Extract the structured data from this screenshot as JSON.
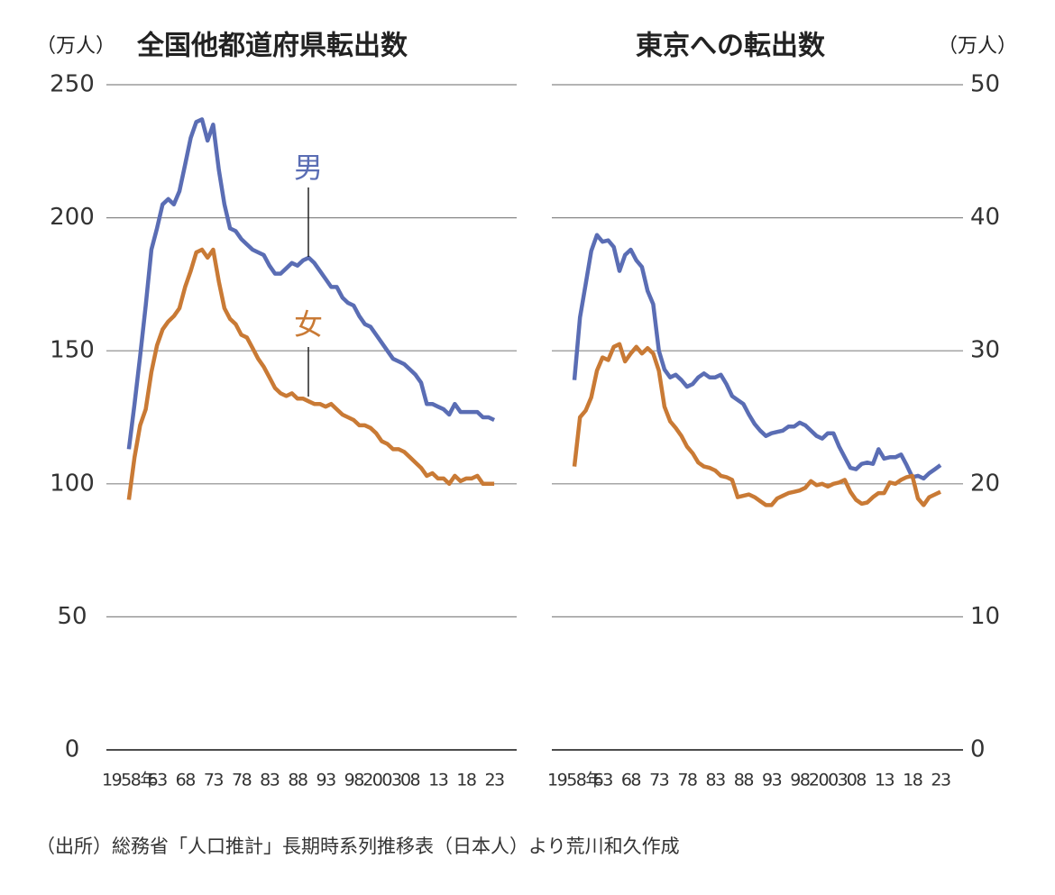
{
  "chart_data": [
    {
      "type": "line",
      "title": "全国他都道府県転出数",
      "y_label": "（万人）",
      "y_axis_side": "left",
      "ylim": [
        0,
        250
      ],
      "yticks": [
        0,
        50,
        100,
        150,
        200,
        250
      ],
      "xlim": [
        1954,
        2027
      ],
      "xticks": [
        {
          "value": 1958,
          "label": "1958年"
        },
        63,
        68,
        73,
        78,
        83,
        88,
        93,
        98,
        2003,
        {
          "value": 2008,
          "label": "08"
        },
        13,
        18,
        23
      ],
      "x": [
        1958,
        1959,
        1960,
        1961,
        1962,
        1963,
        1964,
        1965,
        1966,
        1967,
        1968,
        1969,
        1970,
        1971,
        1972,
        1973,
        1974,
        1975,
        1976,
        1977,
        1978,
        1979,
        1980,
        1981,
        1982,
        1983,
        1984,
        1985,
        1986,
        1987,
        1988,
        1989,
        1990,
        1991,
        1992,
        1993,
        1994,
        1995,
        1996,
        1997,
        1998,
        1999,
        2000,
        2001,
        2002,
        2003,
        2004,
        2005,
        2006,
        2007,
        2008,
        2009,
        2010,
        2011,
        2012,
        2013,
        2014,
        2015,
        2016,
        2017,
        2018,
        2019,
        2020,
        2021,
        2022,
        2023
      ],
      "grid": true,
      "series": [
        {
          "name": "男",
          "color": "#5a6db4",
          "values": [
            113,
            130,
            148,
            167,
            188,
            196,
            205,
            207,
            205,
            210,
            220,
            230,
            236,
            237,
            229,
            235,
            218,
            205,
            196,
            195,
            192,
            190,
            188,
            187,
            186,
            182,
            179,
            179,
            181,
            183,
            182,
            184,
            185,
            183,
            180,
            177,
            174,
            174,
            170,
            168,
            167,
            163,
            160,
            159,
            156,
            153,
            150,
            147,
            146,
            145,
            143,
            141,
            138,
            130,
            130,
            129,
            128,
            126,
            130,
            127,
            127,
            127,
            127,
            125,
            125,
            124
          ]
        },
        {
          "name": "女",
          "color": "#c97a35",
          "values": [
            94,
            110,
            122,
            128,
            142,
            152,
            158,
            161,
            163,
            166,
            174,
            180,
            187,
            188,
            185,
            188,
            176,
            166,
            162,
            160,
            156,
            155,
            151,
            147,
            144,
            140,
            136,
            134,
            133,
            134,
            132,
            132,
            131,
            130,
            130,
            129,
            130,
            128,
            126,
            125,
            124,
            122,
            122,
            121,
            119,
            116,
            115,
            113,
            113,
            112,
            110,
            108,
            106,
            103,
            104,
            102,
            102,
            100,
            103,
            101,
            102,
            102,
            103,
            100,
            100,
            100
          ]
        }
      ]
    },
    {
      "type": "line",
      "title": "東京への転出数",
      "y_label": "（万人）",
      "y_axis_side": "right",
      "ylim": [
        0,
        50
      ],
      "yticks": [
        0,
        10,
        20,
        30,
        40,
        50
      ],
      "xlim": [
        1954,
        2027
      ],
      "xticks": [
        {
          "value": 1958,
          "label": "1958年"
        },
        63,
        68,
        73,
        78,
        83,
        88,
        93,
        98,
        2003,
        {
          "value": 2008,
          "label": "08"
        },
        13,
        18,
        23
      ],
      "x": [
        1958,
        1959,
        1960,
        1961,
        1962,
        1963,
        1964,
        1965,
        1966,
        1967,
        1968,
        1969,
        1970,
        1971,
        1972,
        1973,
        1974,
        1975,
        1976,
        1977,
        1978,
        1979,
        1980,
        1981,
        1982,
        1983,
        1984,
        1985,
        1986,
        1987,
        1988,
        1989,
        1990,
        1991,
        1992,
        1993,
        1994,
        1995,
        1996,
        1997,
        1998,
        1999,
        2000,
        2001,
        2002,
        2003,
        2004,
        2005,
        2006,
        2007,
        2008,
        2009,
        2010,
        2011,
        2012,
        2013,
        2014,
        2015,
        2016,
        2017,
        2018,
        2019,
        2020,
        2021,
        2022,
        2023
      ],
      "grid": true,
      "series": [
        {
          "color": "#5a6db4",
          "values": [
            27.8,
            32.5,
            35,
            37.5,
            38.7,
            38.2,
            38.3,
            37.8,
            36,
            37.2,
            37.6,
            36.8,
            36.3,
            34.5,
            33.5,
            30,
            28.6,
            28,
            28.2,
            27.8,
            27.3,
            27.5,
            28,
            28.3,
            28,
            28,
            28.2,
            27.5,
            26.6,
            26.3,
            26,
            25.2,
            24.5,
            24,
            23.6,
            23.8,
            23.9,
            24,
            24.3,
            24.3,
            24.6,
            24.4,
            24,
            23.6,
            23.4,
            23.8,
            23.8,
            22.8,
            22,
            21.2,
            21.1,
            21.5,
            21.6,
            21.5,
            22.6,
            21.9,
            22,
            22,
            22.2,
            21.4,
            20.5,
            20.6,
            20.4,
            20.8,
            21.1,
            21.4
          ]
        },
        {
          "color": "#c97a35",
          "values": [
            21.3,
            25,
            25.5,
            26.5,
            28.5,
            29.5,
            29.3,
            30.3,
            30.5,
            29.2,
            29.8,
            30.3,
            29.8,
            30.2,
            29.8,
            28.5,
            25.8,
            24.7,
            24.2,
            23.6,
            22.8,
            22.3,
            21.6,
            21.3,
            21.2,
            21,
            20.6,
            20.5,
            20.3,
            19,
            19.1,
            19.2,
            19,
            18.7,
            18.4,
            18.4,
            18.9,
            19.1,
            19.3,
            19.4,
            19.5,
            19.7,
            20.2,
            19.9,
            20,
            19.8,
            20,
            20.1,
            20.3,
            19.4,
            18.8,
            18.5,
            18.6,
            19,
            19.3,
            19.3,
            20.1,
            20,
            20.3,
            20.5,
            20.6,
            18.9,
            18.4,
            19,
            19.2,
            19.4
          ]
        }
      ]
    }
  ],
  "source": "（出所）総務省「人口推計」長期時系列推移表（日本人）より荒川和久作成"
}
